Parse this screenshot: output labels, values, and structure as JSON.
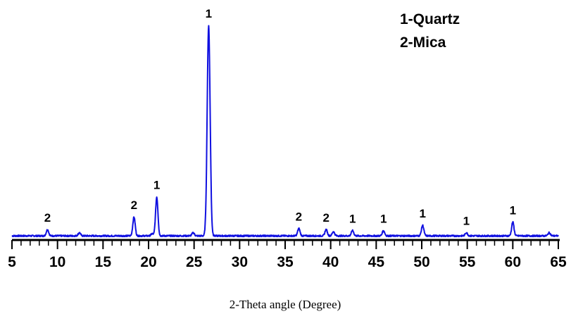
{
  "chart_data": {
    "type": "line",
    "title": "",
    "xlabel": "2-Theta angle (Degree)",
    "ylabel": "",
    "xlim": [
      5,
      65
    ],
    "ylim": [
      0,
      100
    ],
    "grid": false,
    "legend_placement": "top-right",
    "series_color": "#1010e0",
    "legend": [
      {
        "marker": "1",
        "name": "1-Quartz"
      },
      {
        "marker": "2",
        "name": "2-Mica"
      }
    ],
    "x_ticks": [
      5,
      10,
      15,
      20,
      25,
      30,
      35,
      40,
      45,
      50,
      55,
      60,
      65
    ],
    "peaks": [
      {
        "x": 8.9,
        "y": 3,
        "label": "2"
      },
      {
        "x": 12.4,
        "y": 1.5,
        "label": ""
      },
      {
        "x": 18.4,
        "y": 9,
        "label": "2"
      },
      {
        "x": 20.4,
        "y": 1,
        "label": ""
      },
      {
        "x": 20.9,
        "y": 18.5,
        "label": "1"
      },
      {
        "x": 24.9,
        "y": 1.5,
        "label": ""
      },
      {
        "x": 26.6,
        "y": 100,
        "label": "1"
      },
      {
        "x": 36.5,
        "y": 3.5,
        "label": "2"
      },
      {
        "x": 39.5,
        "y": 3,
        "label": "2"
      },
      {
        "x": 40.3,
        "y": 2,
        "label": ""
      },
      {
        "x": 42.4,
        "y": 2.5,
        "label": "1"
      },
      {
        "x": 45.8,
        "y": 2.5,
        "label": "1"
      },
      {
        "x": 50.1,
        "y": 5,
        "label": "1"
      },
      {
        "x": 54.9,
        "y": 1.5,
        "label": "1"
      },
      {
        "x": 60.0,
        "y": 6.5,
        "label": "1"
      },
      {
        "x": 64.0,
        "y": 1.5,
        "label": ""
      }
    ]
  }
}
